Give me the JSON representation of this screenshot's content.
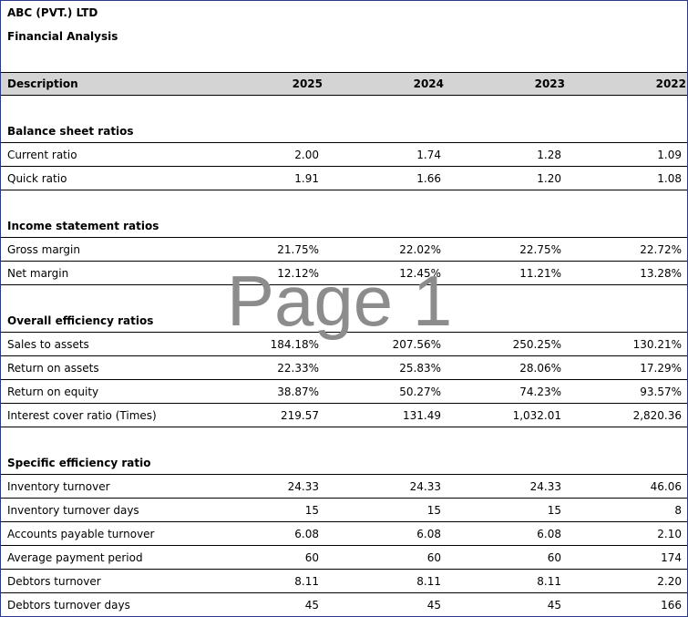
{
  "company": "ABC (PVT.) LTD",
  "subtitle": "Financial Analysis",
  "watermark": "Page 1",
  "header": {
    "description": "Description",
    "years": [
      "2025",
      "2024",
      "2023",
      "2022"
    ]
  },
  "sections": [
    {
      "title": "Balance sheet ratios",
      "rows": [
        {
          "label": "Current ratio",
          "values": [
            "2.00",
            "1.74",
            "1.28",
            "1.09"
          ]
        },
        {
          "label": "Quick ratio",
          "values": [
            "1.91",
            "1.66",
            "1.20",
            "1.08"
          ]
        }
      ]
    },
    {
      "title": "Income statement ratios",
      "rows": [
        {
          "label": "Gross margin",
          "values": [
            "21.75%",
            "22.02%",
            "22.75%",
            "22.72%"
          ]
        },
        {
          "label": "Net margin",
          "values": [
            "12.12%",
            "12.45%",
            "11.21%",
            "13.28%"
          ]
        }
      ]
    },
    {
      "title": "Overall efficiency ratios",
      "rows": [
        {
          "label": "Sales to assets",
          "values": [
            "184.18%",
            "207.56%",
            "250.25%",
            "130.21%"
          ]
        },
        {
          "label": "Return on assets",
          "values": [
            "22.33%",
            "25.83%",
            "28.06%",
            "17.29%"
          ]
        },
        {
          "label": "Return on equity",
          "values": [
            "38.87%",
            "50.27%",
            "74.23%",
            "93.57%"
          ]
        },
        {
          "label": "Interest cover ratio (Times)",
          "values": [
            "219.57",
            "131.49",
            "1,032.01",
            "2,820.36"
          ]
        }
      ]
    },
    {
      "title": "Specific efficiency ratio",
      "rows": [
        {
          "label": "Inventory turnover",
          "values": [
            "24.33",
            "24.33",
            "24.33",
            "46.06"
          ]
        },
        {
          "label": "Inventory turnover days",
          "values": [
            "15",
            "15",
            "15",
            "8"
          ]
        },
        {
          "label": "Accounts payable turnover",
          "values": [
            "6.08",
            "6.08",
            "6.08",
            "2.10"
          ]
        },
        {
          "label": "Average payment period",
          "values": [
            "60",
            "60",
            "60",
            "174"
          ]
        },
        {
          "label": "Debtors turnover",
          "values": [
            "8.11",
            "8.11",
            "8.11",
            "2.20"
          ]
        },
        {
          "label": "Debtors turnover days",
          "values": [
            "45",
            "45",
            "45",
            "166"
          ]
        }
      ]
    }
  ]
}
